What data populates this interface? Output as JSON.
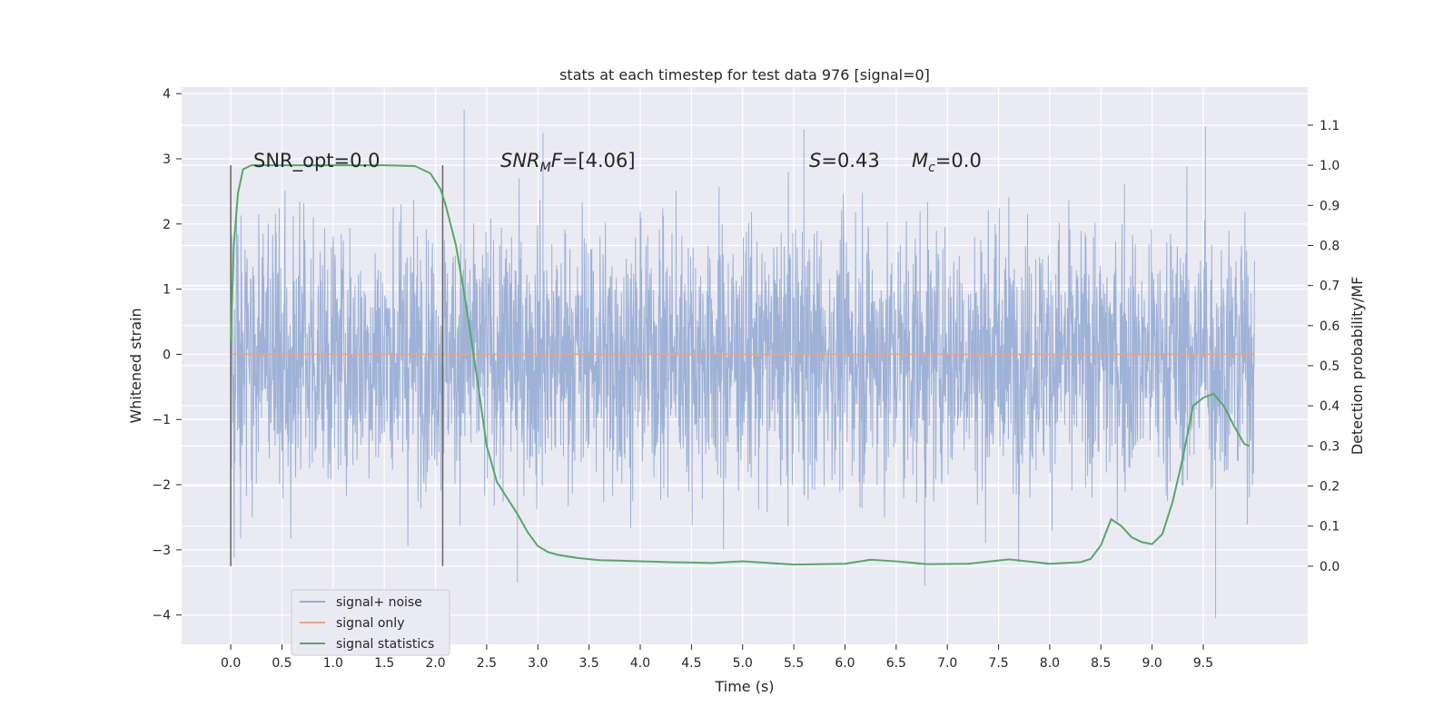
{
  "chart_data": {
    "type": "line",
    "title": "stats at each timestep for test data 976 [signal=0]",
    "xlabel": "Time (s)",
    "ylabel_left": "Whitened strain",
    "ylabel_right": "Detection probability/MF",
    "xlim": [
      -0.48,
      10.52
    ],
    "ylim_left": [
      -4.45,
      4.1
    ],
    "ylim_right": [
      -0.195,
      1.195
    ],
    "x_ticks": [
      0.0,
      0.5,
      1.0,
      1.5,
      2.0,
      2.5,
      3.0,
      3.5,
      4.0,
      4.5,
      5.0,
      5.5,
      6.0,
      6.5,
      7.0,
      7.5,
      8.0,
      8.5,
      9.0,
      9.5
    ],
    "y_left_ticks": [
      -4,
      -3,
      -2,
      -1,
      0,
      1,
      2,
      3,
      4
    ],
    "y_right_ticks": [
      0.0,
      0.1,
      0.2,
      0.3,
      0.4,
      0.5,
      0.6,
      0.7,
      0.8,
      0.9,
      1.0,
      1.1
    ],
    "grid": true,
    "legend_position": "lower-left",
    "series": [
      {
        "name": "signal+ noise",
        "axis": "left",
        "color": "#9aaed4",
        "kind": "noise",
        "x_range": [
          0.0,
          10.0
        ],
        "y_spread": 1.0,
        "notable_peaks": [
          [
            2.28,
            3.75
          ],
          [
            3.05,
            3.4
          ],
          [
            5.6,
            3.45
          ],
          [
            9.52,
            3.5
          ],
          [
            2.8,
            -3.5
          ],
          [
            6.78,
            -3.55
          ],
          [
            9.62,
            -4.05
          ]
        ]
      },
      {
        "name": "signal only",
        "axis": "left",
        "color": "#e8a48a",
        "x": [
          0.0,
          10.0
        ],
        "y": [
          0.0,
          0.0
        ]
      },
      {
        "name": "signal statistics",
        "axis": "right",
        "color": "#55a868",
        "x": [
          0.0,
          0.03,
          0.07,
          0.12,
          0.2,
          0.3,
          0.5,
          1.0,
          1.5,
          1.8,
          1.95,
          2.05,
          2.1,
          2.2,
          2.3,
          2.4,
          2.5,
          2.6,
          2.7,
          2.8,
          2.9,
          3.0,
          3.1,
          3.2,
          3.4,
          3.6,
          3.9,
          4.3,
          4.7,
          5.0,
          5.5,
          6.0,
          6.25,
          6.5,
          6.8,
          7.2,
          7.6,
          8.0,
          8.3,
          8.4,
          8.5,
          8.6,
          8.7,
          8.8,
          8.9,
          9.0,
          9.1,
          9.2,
          9.3,
          9.4,
          9.5,
          9.6,
          9.7,
          9.8,
          9.9,
          9.95
        ],
        "y": [
          0.56,
          0.8,
          0.93,
          0.99,
          1.0,
          1.0,
          1.0,
          1.0,
          1.0,
          0.998,
          0.98,
          0.94,
          0.9,
          0.8,
          0.65,
          0.48,
          0.3,
          0.21,
          0.17,
          0.13,
          0.085,
          0.05,
          0.035,
          0.028,
          0.02,
          0.015,
          0.013,
          0.01,
          0.008,
          0.012,
          0.004,
          0.006,
          0.016,
          0.012,
          0.005,
          0.006,
          0.017,
          0.006,
          0.01,
          0.018,
          0.052,
          0.117,
          0.1,
          0.072,
          0.06,
          0.055,
          0.08,
          0.16,
          0.27,
          0.4,
          0.42,
          0.43,
          0.4,
          0.35,
          0.305,
          0.3
        ]
      }
    ],
    "vertical_lines": [
      0.0,
      2.07
    ],
    "annotations": [
      {
        "x": 0.2,
        "y": 2.9,
        "text": "SNR_opt=0.0"
      },
      {
        "x": 2.6,
        "y": 2.9,
        "text": "SNR_M F=[4.06]",
        "math": "SNRMF"
      },
      {
        "x": 5.6,
        "y": 2.9,
        "text": "S=0.43",
        "math": "S"
      },
      {
        "x": 6.6,
        "y": 2.9,
        "text": "M_c=0.0",
        "math": "Mc"
      }
    ]
  }
}
